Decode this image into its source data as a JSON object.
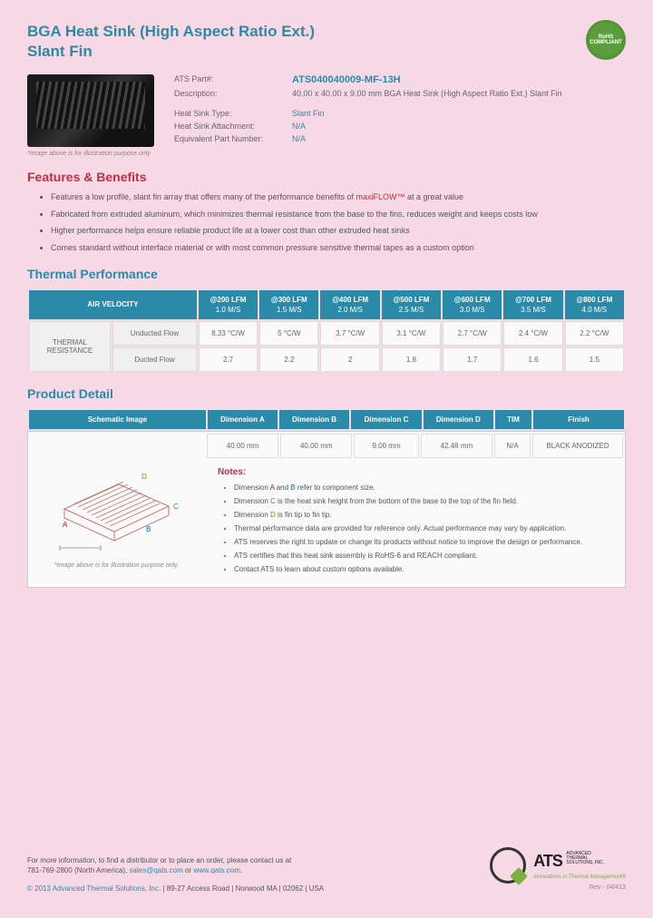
{
  "header": {
    "title_line1": "BGA Heat Sink (High Aspect Ratio Ext.)",
    "title_line2": "Slant Fin",
    "rohs": "RoHS COMPLIANT"
  },
  "specs": {
    "part_label": "ATS Part#:",
    "part_value": "ATS040040009-MF-13H",
    "desc_label": "Description:",
    "desc_value": "40.00 x 40.00 x 9.00 mm  BGA Heat Sink (High Aspect Ratio Ext.) Slant Fin",
    "type_label": "Heat Sink Type:",
    "type_value": "Slant Fin",
    "attach_label": "Heat Sink Attachment:",
    "attach_value": "N/A",
    "equiv_label": "Equivalent Part Number:",
    "equiv_value": "N/A",
    "caption": "*Image above is for illustration purpose only"
  },
  "features": {
    "heading": "Features & Benefits",
    "brand": "maxiFLOW™",
    "items": [
      "Features a low profile, slant fin array that offers many of the performance benefits of ",
      " at a great value",
      "Fabricated from extruded aluminum, which minimizes thermal resistance from the base to the fins, reduces weight and keeps costs low",
      "Higher performance helps ensure reliable product life at a lower cost than other extruded heat sinks",
      "Comes standard without interface material or with most common pressure sensitive thermal tapes as a custom option"
    ]
  },
  "thermal": {
    "heading": "Thermal Performance",
    "air_velocity": "AIR VELOCITY",
    "cols": [
      {
        "top": "@200 LFM",
        "sub": "1.0 M/S"
      },
      {
        "top": "@300 LFM",
        "sub": "1.5 M/S"
      },
      {
        "top": "@400 LFM",
        "sub": "2.0 M/S"
      },
      {
        "top": "@500 LFM",
        "sub": "2.5 M/S"
      },
      {
        "top": "@600 LFM",
        "sub": "3.0 M/S"
      },
      {
        "top": "@700 LFM",
        "sub": "3.5 M/S"
      },
      {
        "top": "@800 LFM",
        "sub": "4.0 M/S"
      }
    ],
    "row_group": "THERMAL RESISTANCE",
    "rows": [
      {
        "label": "Unducted Flow",
        "vals": [
          "8.33 °C/W",
          "5 °C/W",
          "3.7 °C/W",
          "3.1 °C/W",
          "2.7 °C/W",
          "2.4 °C/W",
          "2.2 °C/W"
        ]
      },
      {
        "label": "Ducted Flow",
        "vals": [
          "2.7",
          "2.2",
          "2",
          "1.8",
          "1.7",
          "1.6",
          "1.5"
        ]
      }
    ]
  },
  "detail": {
    "heading": "Product Detail",
    "cols": [
      "Schematic Image",
      "Dimension A",
      "Dimension B",
      "Dimension C",
      "Dimension D",
      "TIM",
      "Finish"
    ],
    "vals": [
      "40.00 mm",
      "40.00 mm",
      "9.00 mm",
      "42.48 mm",
      "N/A",
      "BLACK ANODIZED"
    ],
    "caption": "*Image above is for illustration purpose only.",
    "notes_h": "Notes:",
    "notes": [
      "Dimension <span class='dimA'>A</span> and <span class='dimB'>B</span> refer to component size.",
      "Dimension <span class='dimC'>C</span> is the heat sink height from the bottom of the base to the top of the fin field.",
      "Dimension <span class='dimD'>D</span> is fin tip to fin tip.",
      "Thermal performance data are provided for reference only. Actual performance may vary by application.",
      "ATS reserves the right to update or change its products without notice to improve the design or performance.",
      "ATS certifies that this heat sink assembly is RoHS-6 and REACH compliant.",
      "Contact ATS to learn about custom options available."
    ]
  },
  "footer": {
    "text1": "For more information, to find a distributor or to place an order, please contact us at",
    "phone": "781-769-2800 (North America),",
    "email": "sales@qats.com",
    "or": " or ",
    "web": "www.qats.com",
    "copyright": "© 2013 Advanced Thermal Solutions, Inc.",
    "addr": " | 89-27 Access Road | Norwood MA | 02062 | USA",
    "logo_big": "ATS",
    "logo_sm1": "ADVANCED",
    "logo_sm2": "THERMAL",
    "logo_sm3": "SOLUTIONS, INC.",
    "logo_tag": "Innovations in Thermal Management®",
    "rev": "Rev - 04/413"
  },
  "colors": {
    "bg": "#f7d9e5",
    "teal": "#2b8aa8",
    "red": "#c03040",
    "table_header": "#2b8aa8"
  }
}
